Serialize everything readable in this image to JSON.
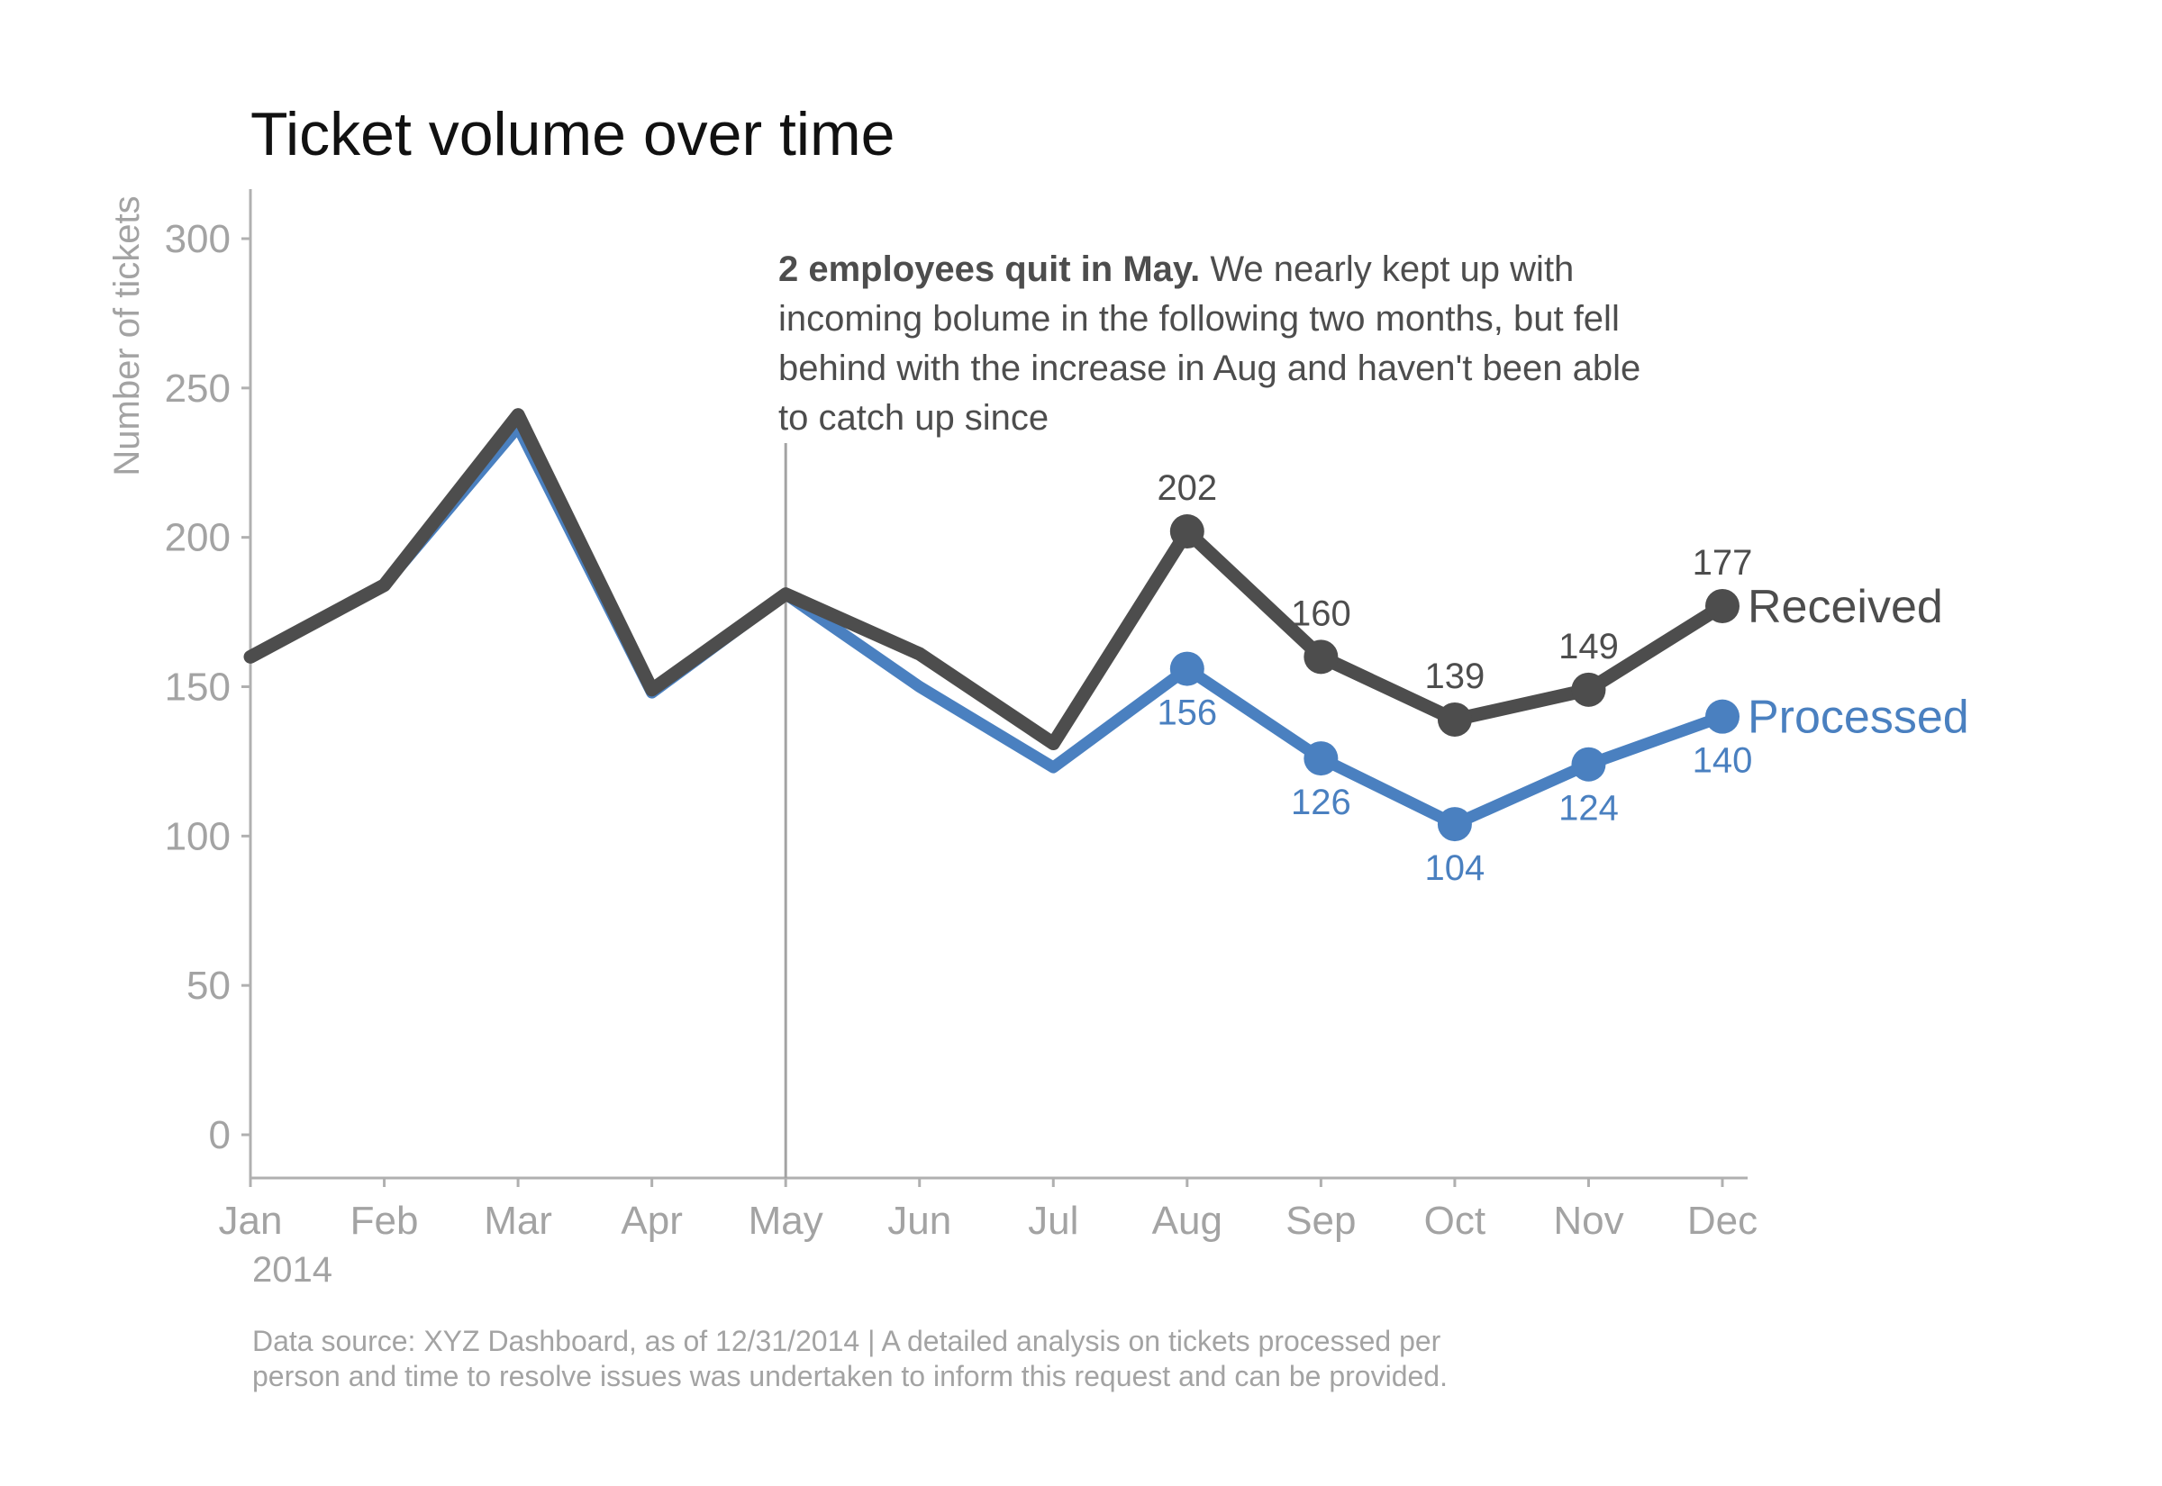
{
  "chart_data": {
    "type": "line",
    "title": "Ticket volume over time",
    "ylabel": "Number of tickets",
    "xlabel": "",
    "year_label": "2014",
    "categories": [
      "Jan",
      "Feb",
      "Mar",
      "Apr",
      "May",
      "Jun",
      "Jul",
      "Aug",
      "Sep",
      "Oct",
      "Nov",
      "Dec"
    ],
    "ylim": [
      -15,
      315
    ],
    "yticks": [
      0,
      50,
      100,
      150,
      200,
      250,
      300
    ],
    "grid": false,
    "legend": "direct labels at line ends (right)",
    "series": [
      {
        "name": "Received",
        "color": "#4d4d4d",
        "values": [
          160,
          184,
          241,
          149,
          181,
          161,
          131,
          202,
          160,
          139,
          149,
          177
        ],
        "labeled_from_index": 7
      },
      {
        "name": "Processed",
        "color": "#4a80c0",
        "values": [
          160,
          184,
          237,
          148,
          181,
          150,
          123,
          156,
          126,
          104,
          124,
          140
        ],
        "labeled_from_index": 7
      }
    ],
    "annotation": {
      "at_category": "May",
      "bold": "2 employees quit in May.",
      "lines": [
        " We nearly kept up with",
        "incoming bolume in the following two months, but fell",
        "behind with the increase in Aug and haven't been able",
        "to catch up since"
      ]
    },
    "source_note": [
      "Data source: XYZ Dashboard, as of 12/31/2014 | A detailed analysis on tickets processed per",
      "person and time to resolve issues was undertaken to inform this request and can be provided."
    ]
  }
}
